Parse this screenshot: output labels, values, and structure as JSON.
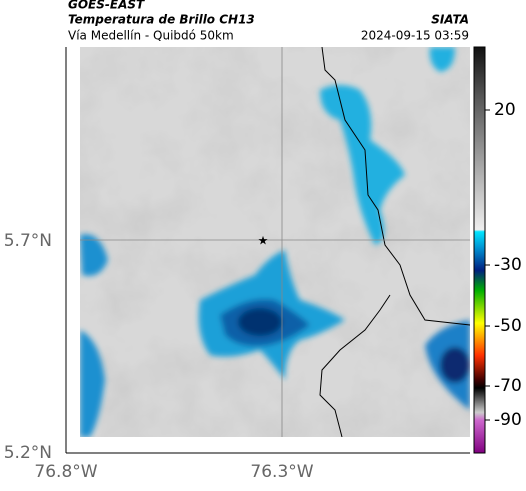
{
  "header": {
    "title": "GOES-EAST",
    "subtitle": "Temperatura de Brillo CH13",
    "source": "SIATA",
    "location": "Vía Medellín - Quibdó 50km",
    "datetime": "2024-09-15 03:59"
  },
  "map": {
    "lat_ticks": [
      "5.7°N",
      "5.2°N"
    ],
    "lon_ticks": [
      "76.8°W",
      "76.3°W"
    ]
  },
  "colorbar": {
    "ticks": [
      20,
      -30,
      -50,
      -70,
      -90
    ]
  }
}
